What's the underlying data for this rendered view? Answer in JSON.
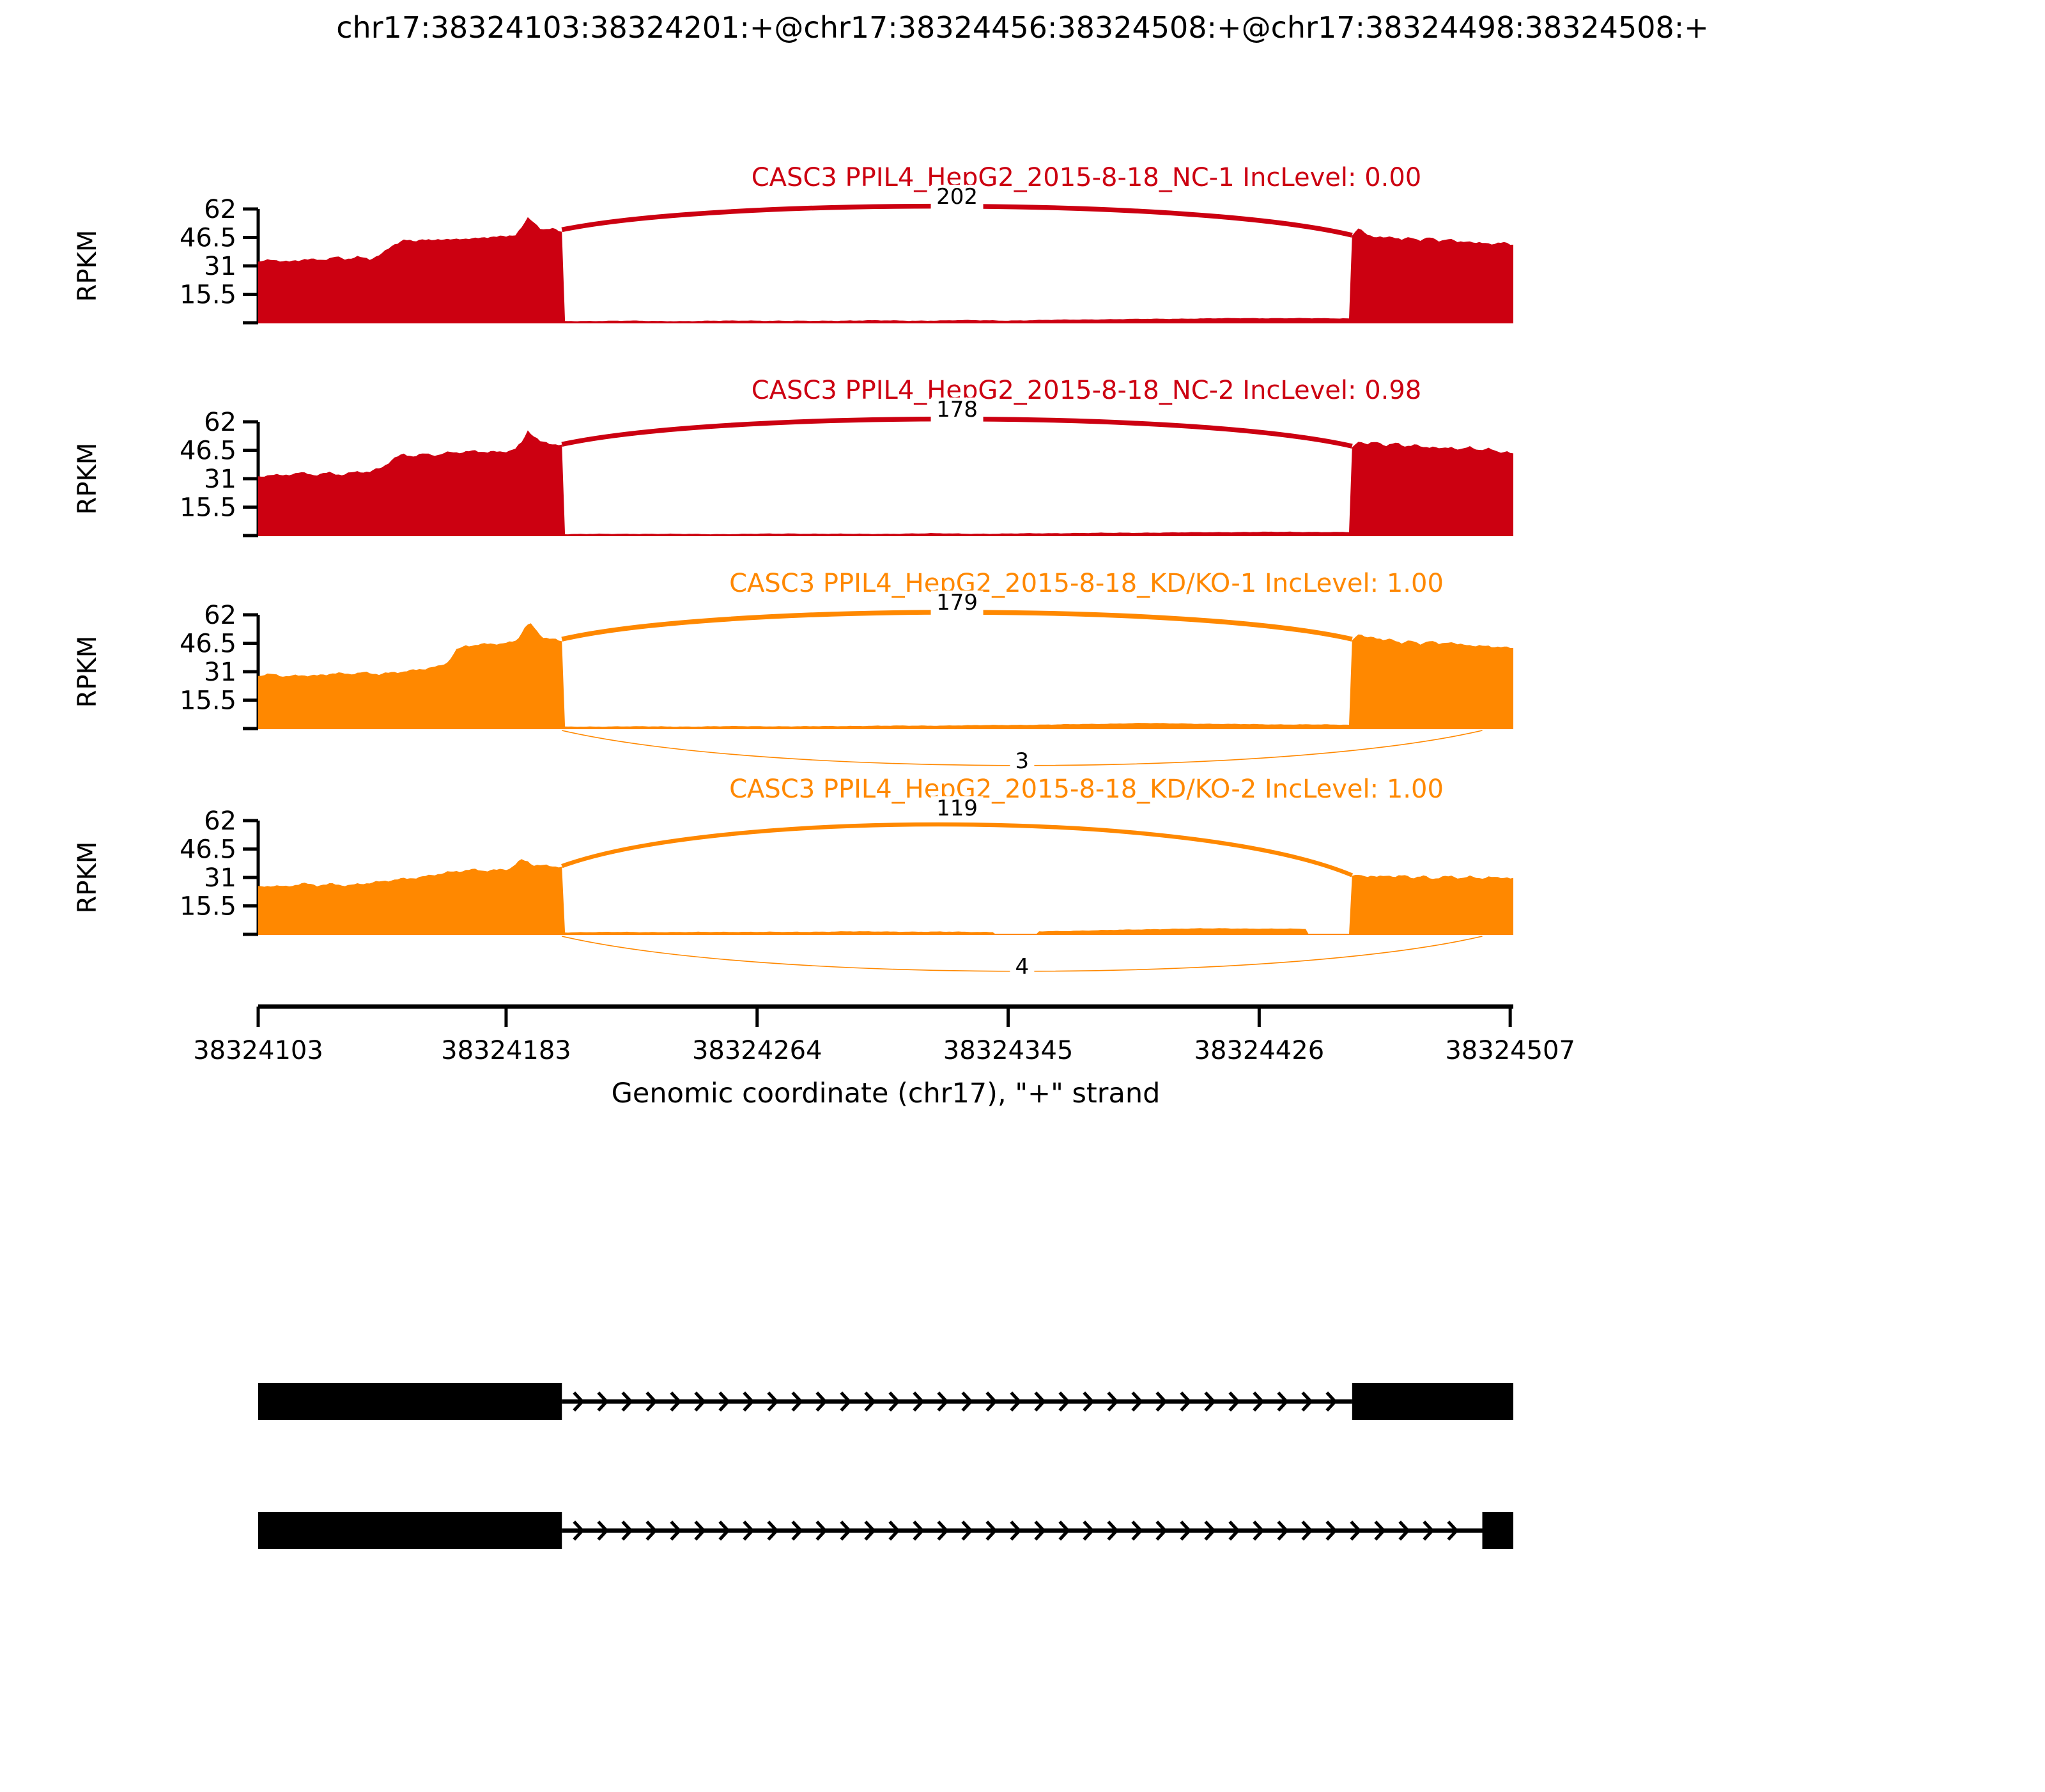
{
  "title": "chr17:38324103:38324201:+@chr17:38324456:38324508:+@chr17:38324498:38324508:+",
  "chart_data": {
    "type": "area",
    "subtype": "sashimi-plot",
    "x_axis": {
      "label": "Genomic coordinate (chr17), \"+\" strand",
      "ticks": [
        38324103,
        38324183,
        38324264,
        38324345,
        38324426,
        38324507
      ],
      "min": 38324103,
      "max": 38324508
    },
    "y_axis": {
      "label": "RPKM",
      "ticks": [
        15.5,
        31,
        46.5,
        62
      ],
      "max": 62
    },
    "event_exons": {
      "upstream_exon": [
        38324103,
        38324201
      ],
      "downstream_long_exon": [
        38324456,
        38324508
      ],
      "downstream_short_exon": [
        38324498,
        38324508
      ]
    },
    "tracks": [
      {
        "label": "CASC3 PPIL4_HepG2_2015-8-18_NC-1 IncLevel: 0.00",
        "inc_level": "0.00",
        "color": "#CC0011",
        "junctions": [
          {
            "start": 38324201,
            "end": 38324456,
            "reads": 202,
            "position": "top"
          }
        ],
        "coverage": [
          [
            38324103,
            33
          ],
          [
            38324108,
            34.5
          ],
          [
            38324113,
            33.5
          ],
          [
            38324118,
            35
          ],
          [
            38324123,
            34
          ],
          [
            38324128,
            35.5
          ],
          [
            38324131,
            34.5
          ],
          [
            38324135,
            36
          ],
          [
            38324139,
            35
          ],
          [
            38324143,
            38
          ],
          [
            38324147,
            43
          ],
          [
            38324150,
            45
          ],
          [
            38324153,
            44
          ],
          [
            38324156,
            45.5
          ],
          [
            38324159,
            44.5
          ],
          [
            38324163,
            46
          ],
          [
            38324167,
            45.5
          ],
          [
            38324171,
            46.5
          ],
          [
            38324175,
            46
          ],
          [
            38324179,
            47
          ],
          [
            38324183,
            46.5
          ],
          [
            38324186,
            48
          ],
          [
            38324188,
            52
          ],
          [
            38324190,
            57
          ],
          [
            38324192,
            55
          ],
          [
            38324194,
            52
          ],
          [
            38324196,
            51
          ],
          [
            38324198,
            51.5
          ],
          [
            38324201,
            50
          ],
          [
            38324202,
            0.9
          ],
          [
            38324220,
            1.1
          ],
          [
            38324240,
            0.9
          ],
          [
            38324260,
            1.2
          ],
          [
            38324280,
            1.0
          ],
          [
            38324300,
            1.3
          ],
          [
            38324315,
            1.1
          ],
          [
            38324330,
            1.4
          ],
          [
            38324345,
            1.2
          ],
          [
            38324360,
            1.6
          ],
          [
            38324375,
            1.9
          ],
          [
            38324390,
            2.1
          ],
          [
            38324405,
            2.3
          ],
          [
            38324420,
            2.5
          ],
          [
            38324435,
            2.5
          ],
          [
            38324448,
            2.4
          ],
          [
            38324455,
            2.4
          ],
          [
            38324456,
            47
          ],
          [
            38324458,
            51
          ],
          [
            38324460,
            49
          ],
          [
            38324463,
            47
          ],
          [
            38324466,
            46.5
          ],
          [
            38324469,
            47.5
          ],
          [
            38324472,
            45.5
          ],
          [
            38324475,
            46.5
          ],
          [
            38324478,
            45
          ],
          [
            38324481,
            46
          ],
          [
            38324484,
            44.5
          ],
          [
            38324487,
            45.5
          ],
          [
            38324490,
            44
          ],
          [
            38324493,
            45
          ],
          [
            38324496,
            43.5
          ],
          [
            38324499,
            44
          ],
          [
            38324502,
            43
          ],
          [
            38324505,
            43.5
          ],
          [
            38324508,
            42.5
          ]
        ]
      },
      {
        "label": "CASC3 PPIL4_HepG2_2015-8-18_NC-2 IncLevel: 0.98",
        "inc_level": "0.98",
        "color": "#CC0011",
        "junctions": [
          {
            "start": 38324201,
            "end": 38324456,
            "reads": 178,
            "position": "top"
          }
        ],
        "coverage": [
          [
            38324103,
            32
          ],
          [
            38324107,
            33.5
          ],
          [
            38324111,
            32.5
          ],
          [
            38324116,
            34
          ],
          [
            38324121,
            33
          ],
          [
            38324126,
            34.5
          ],
          [
            38324130,
            33.5
          ],
          [
            38324135,
            35
          ],
          [
            38324139,
            34.5
          ],
          [
            38324143,
            37
          ],
          [
            38324147,
            42
          ],
          [
            38324150,
            44.5
          ],
          [
            38324153,
            43.5
          ],
          [
            38324157,
            45
          ],
          [
            38324161,
            44
          ],
          [
            38324165,
            45.5
          ],
          [
            38324169,
            45
          ],
          [
            38324173,
            46
          ],
          [
            38324177,
            45.5
          ],
          [
            38324181,
            46
          ],
          [
            38324184,
            46.5
          ],
          [
            38324186,
            47.5
          ],
          [
            38324188,
            51
          ],
          [
            38324190,
            57.5
          ],
          [
            38324192,
            54
          ],
          [
            38324194,
            51
          ],
          [
            38324197,
            50
          ],
          [
            38324201,
            49
          ],
          [
            38324202,
            0.8
          ],
          [
            38324225,
            1.0
          ],
          [
            38324250,
            0.8
          ],
          [
            38324275,
            1.1
          ],
          [
            38324300,
            0.9
          ],
          [
            38324320,
            1.2
          ],
          [
            38324340,
            1.0
          ],
          [
            38324360,
            1.3
          ],
          [
            38324380,
            1.5
          ],
          [
            38324400,
            1.7
          ],
          [
            38324415,
            1.9
          ],
          [
            38324430,
            2.0
          ],
          [
            38324445,
            2.0
          ],
          [
            38324455,
            1.9
          ],
          [
            38324456,
            48
          ],
          [
            38324458,
            52
          ],
          [
            38324461,
            50
          ],
          [
            38324464,
            51
          ],
          [
            38324467,
            49
          ],
          [
            38324470,
            50
          ],
          [
            38324473,
            48.5
          ],
          [
            38324476,
            49.5
          ],
          [
            38324479,
            48
          ],
          [
            38324482,
            49
          ],
          [
            38324485,
            47.5
          ],
          [
            38324488,
            48.5
          ],
          [
            38324491,
            47
          ],
          [
            38324494,
            48
          ],
          [
            38324497,
            46.5
          ],
          [
            38324500,
            47
          ],
          [
            38324503,
            45.5
          ],
          [
            38324506,
            46
          ],
          [
            38324508,
            44.5
          ]
        ]
      },
      {
        "label": "CASC3 PPIL4_HepG2_2015-8-18_KD/KO-1 IncLevel: 1.00",
        "inc_level": "1.00",
        "color": "#FF8800",
        "junctions": [
          {
            "start": 38324201,
            "end": 38324456,
            "reads": 179,
            "position": "top"
          },
          {
            "start": 38324201,
            "end": 38324498,
            "reads": 3,
            "position": "bottom"
          }
        ],
        "coverage": [
          [
            38324103,
            28.5
          ],
          [
            38324108,
            29.5
          ],
          [
            38324112,
            28.5
          ],
          [
            38324117,
            29.5
          ],
          [
            38324122,
            29
          ],
          [
            38324127,
            30
          ],
          [
            38324132,
            29.5
          ],
          [
            38324137,
            30.5
          ],
          [
            38324142,
            30
          ],
          [
            38324147,
            31
          ],
          [
            38324152,
            31.5
          ],
          [
            38324157,
            32.5
          ],
          [
            38324161,
            33.5
          ],
          [
            38324164,
            36
          ],
          [
            38324167,
            43
          ],
          [
            38324170,
            45.5
          ],
          [
            38324174,
            46
          ],
          [
            38324178,
            46.5
          ],
          [
            38324182,
            46
          ],
          [
            38324185,
            47
          ],
          [
            38324187,
            49
          ],
          [
            38324189,
            55
          ],
          [
            38324191,
            57
          ],
          [
            38324193,
            53
          ],
          [
            38324195,
            50
          ],
          [
            38324198,
            49
          ],
          [
            38324201,
            48
          ],
          [
            38324202,
            1.0
          ],
          [
            38324220,
            1.2
          ],
          [
            38324240,
            1.1
          ],
          [
            38324260,
            1.3
          ],
          [
            38324280,
            1.2
          ],
          [
            38324300,
            1.5
          ],
          [
            38324320,
            1.6
          ],
          [
            38324340,
            1.9
          ],
          [
            38324360,
            2.2
          ],
          [
            38324375,
            2.6
          ],
          [
            38324388,
            3.0
          ],
          [
            38324400,
            2.8
          ],
          [
            38324415,
            2.5
          ],
          [
            38324430,
            2.3
          ],
          [
            38324445,
            2.2
          ],
          [
            38324455,
            2.1
          ],
          [
            38324456,
            48
          ],
          [
            38324458,
            51
          ],
          [
            38324460,
            49.5
          ],
          [
            38324463,
            50
          ],
          [
            38324466,
            48
          ],
          [
            38324469,
            49
          ],
          [
            38324472,
            47
          ],
          [
            38324475,
            48
          ],
          [
            38324478,
            46.5
          ],
          [
            38324481,
            47.5
          ],
          [
            38324484,
            46
          ],
          [
            38324487,
            47
          ],
          [
            38324490,
            45.5
          ],
          [
            38324493,
            46
          ],
          [
            38324496,
            45
          ],
          [
            38324500,
            45.5
          ],
          [
            38324504,
            44.5
          ],
          [
            38324508,
            44
          ]
        ]
      },
      {
        "label": "CASC3 PPIL4_HepG2_2015-8-18_KD/KO-2 IncLevel: 1.00",
        "inc_level": "1.00",
        "color": "#FF8800",
        "junctions": [
          {
            "start": 38324201,
            "end": 38324456,
            "reads": 119,
            "position": "top"
          },
          {
            "start": 38324201,
            "end": 38324498,
            "reads": 4,
            "position": "bottom"
          }
        ],
        "coverage": [
          [
            38324103,
            26
          ],
          [
            38324108,
            27
          ],
          [
            38324112,
            26
          ],
          [
            38324117,
            27.5
          ],
          [
            38324122,
            26.5
          ],
          [
            38324127,
            27.5
          ],
          [
            38324132,
            27
          ],
          [
            38324137,
            28
          ],
          [
            38324142,
            28.5
          ],
          [
            38324147,
            29.5
          ],
          [
            38324152,
            30.5
          ],
          [
            38324156,
            31.5
          ],
          [
            38324160,
            33
          ],
          [
            38324164,
            34
          ],
          [
            38324168,
            34.5
          ],
          [
            38324172,
            35
          ],
          [
            38324176,
            34.5
          ],
          [
            38324180,
            35
          ],
          [
            38324184,
            36
          ],
          [
            38324186,
            38.5
          ],
          [
            38324188,
            41
          ],
          [
            38324190,
            40
          ],
          [
            38324192,
            38
          ],
          [
            38324195,
            37.5
          ],
          [
            38324198,
            37
          ],
          [
            38324201,
            36.5
          ],
          [
            38324202,
            1.1
          ],
          [
            38324220,
            1.3
          ],
          [
            38324238,
            1.2
          ],
          [
            38324256,
            1.4
          ],
          [
            38324274,
            1.3
          ],
          [
            38324292,
            1.6
          ],
          [
            38324310,
            1.5
          ],
          [
            38324328,
            1.4
          ],
          [
            38324340,
            1.3
          ],
          [
            38324341,
            0
          ],
          [
            38324354,
            0
          ],
          [
            38324355,
            1.6
          ],
          [
            38324370,
            2.1
          ],
          [
            38324385,
            2.6
          ],
          [
            38324400,
            3.1
          ],
          [
            38324415,
            3.3
          ],
          [
            38324428,
            3.1
          ],
          [
            38324441,
            3.0
          ],
          [
            38324442,
            0
          ],
          [
            38324455,
            0
          ],
          [
            38324456,
            31.5
          ],
          [
            38324458,
            33
          ],
          [
            38324461,
            32
          ],
          [
            38324464,
            31.5
          ],
          [
            38324467,
            32.5
          ],
          [
            38324470,
            31
          ],
          [
            38324473,
            32
          ],
          [
            38324476,
            30.5
          ],
          [
            38324479,
            31.5
          ],
          [
            38324482,
            30.5
          ],
          [
            38324485,
            31.5
          ],
          [
            38324488,
            32
          ],
          [
            38324491,
            31
          ],
          [
            38324494,
            31.5
          ],
          [
            38324497,
            30.5
          ],
          [
            38324500,
            31
          ],
          [
            38324503,
            30.5
          ],
          [
            38324506,
            31
          ],
          [
            38324508,
            30.5
          ]
        ]
      }
    ],
    "gene_models": [
      {
        "exons": [
          [
            38324103,
            38324201
          ],
          [
            38324456,
            38324508
          ]
        ],
        "strand": "+"
      },
      {
        "exons": [
          [
            38324103,
            38324201
          ],
          [
            38324498,
            38324508
          ]
        ],
        "strand": "+"
      }
    ]
  }
}
